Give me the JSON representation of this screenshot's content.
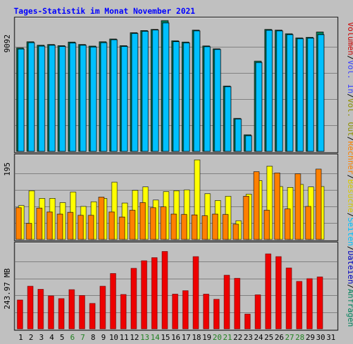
{
  "title": "Tages-Statistik im Monat November 2021",
  "colors": {
    "background": "#c0c0c0",
    "panel": "#c0c0c0",
    "title": "#0000ff",
    "anfragen": "#00805a",
    "dateien": "#0000c0",
    "seiten": "#00c0ff",
    "besuche": "#d8c800",
    "rechner": "#ff8000",
    "vol_out": "#909000",
    "vol_in": "#4040ff",
    "volumen": "#d00000",
    "weekend_day": "#208020",
    "weekday": "#000000"
  },
  "right_legend": [
    {
      "text": "Anfragen",
      "color": "#00805a"
    },
    {
      "text": "/",
      "color": "#000000"
    },
    {
      "text": "Dateien",
      "color": "#0000c0"
    },
    {
      "text": "/",
      "color": "#000000"
    },
    {
      "text": "Seiten",
      "color": "#00c0ff"
    },
    {
      "text": "/",
      "color": "#000000"
    },
    {
      "text": "Besuche",
      "color": "#d8c800"
    },
    {
      "text": "/",
      "color": "#000000"
    },
    {
      "text": "Rechner",
      "color": "#ff8000"
    },
    {
      "text": "/",
      "color": "#000000"
    },
    {
      "text": "Vol. Out",
      "color": "#909000"
    },
    {
      "text": "/",
      "color": "#000000"
    },
    {
      "text": "Vol. In",
      "color": "#4040ff"
    },
    {
      "text": "/",
      "color": "#000000"
    },
    {
      "text": "Volumen",
      "color": "#d00000"
    }
  ],
  "chart_data": [
    {
      "type": "bar",
      "panel": "hits",
      "ymax": 9092,
      "ymax_label": "9092",
      "grid": true,
      "series": [
        {
          "name": "Anfragen",
          "values": [
            7190,
            7620,
            7380,
            7430,
            7350,
            7600,
            7430,
            7320,
            7620,
            7810,
            7350,
            8250,
            8400,
            8480,
            9092,
            7690,
            7600,
            8430,
            7330,
            7130,
            4540,
            2290,
            1150,
            6270,
            8480,
            8430,
            8180,
            7890,
            7930,
            8300
          ]
        },
        {
          "name": "Dateien",
          "values": [
            7120,
            7560,
            7320,
            7380,
            7300,
            7540,
            7380,
            7260,
            7560,
            7760,
            7300,
            8200,
            8350,
            8440,
            8940,
            7630,
            7550,
            8380,
            7280,
            7090,
            4500,
            2250,
            1090,
            6180,
            8420,
            8380,
            8120,
            7840,
            7880,
            8120
          ]
        }
      ]
    },
    {
      "type": "bar",
      "panel": "visits",
      "ymax": 195,
      "ymax_label": "195",
      "grid": true,
      "series": [
        {
          "name": "Besuche",
          "values": [
            80,
            115,
            97,
            97,
            87,
            112,
            78,
            89,
            97,
            135,
            86,
            116,
            124,
            93,
            113,
            115,
            117,
            188,
            108,
            92,
            102,
            44,
            107,
            139,
            173,
            125,
            123,
            130,
            124,
            125
          ]
        },
        {
          "name": "Rechner",
          "values": [
            75,
            38,
            74,
            65,
            60,
            64,
            57,
            57,
            100,
            65,
            53,
            69,
            87,
            75,
            77,
            60,
            59,
            58,
            56,
            60,
            59,
            36,
            102,
            160,
            69,
            157,
            72,
            155,
            78,
            166
          ]
        }
      ]
    },
    {
      "type": "bar",
      "panel": "volume",
      "ymax": 243.97,
      "ymax_label": "243.97 MB",
      "grid": true,
      "series": [
        {
          "name": "Volumen",
          "values": [
            84,
            124,
            115,
            96,
            88,
            114,
            97,
            74,
            124,
            161,
            100,
            176,
            198,
            207,
            225,
            101,
            111,
            210,
            101,
            86,
            156,
            147,
            43,
            99,
            218,
            210,
            177,
            138,
            146,
            151
          ]
        }
      ]
    }
  ],
  "x_axis": {
    "days": [
      "1",
      "2",
      "3",
      "4",
      "5",
      "6",
      "7",
      "8",
      "9",
      "10",
      "11",
      "12",
      "13",
      "14",
      "15",
      "16",
      "17",
      "18",
      "19",
      "20",
      "21",
      "22",
      "23",
      "24",
      "25",
      "26",
      "27",
      "28",
      "29",
      "30",
      "31"
    ],
    "weekend": [
      6,
      7,
      13,
      14,
      20,
      21,
      27,
      28
    ]
  }
}
